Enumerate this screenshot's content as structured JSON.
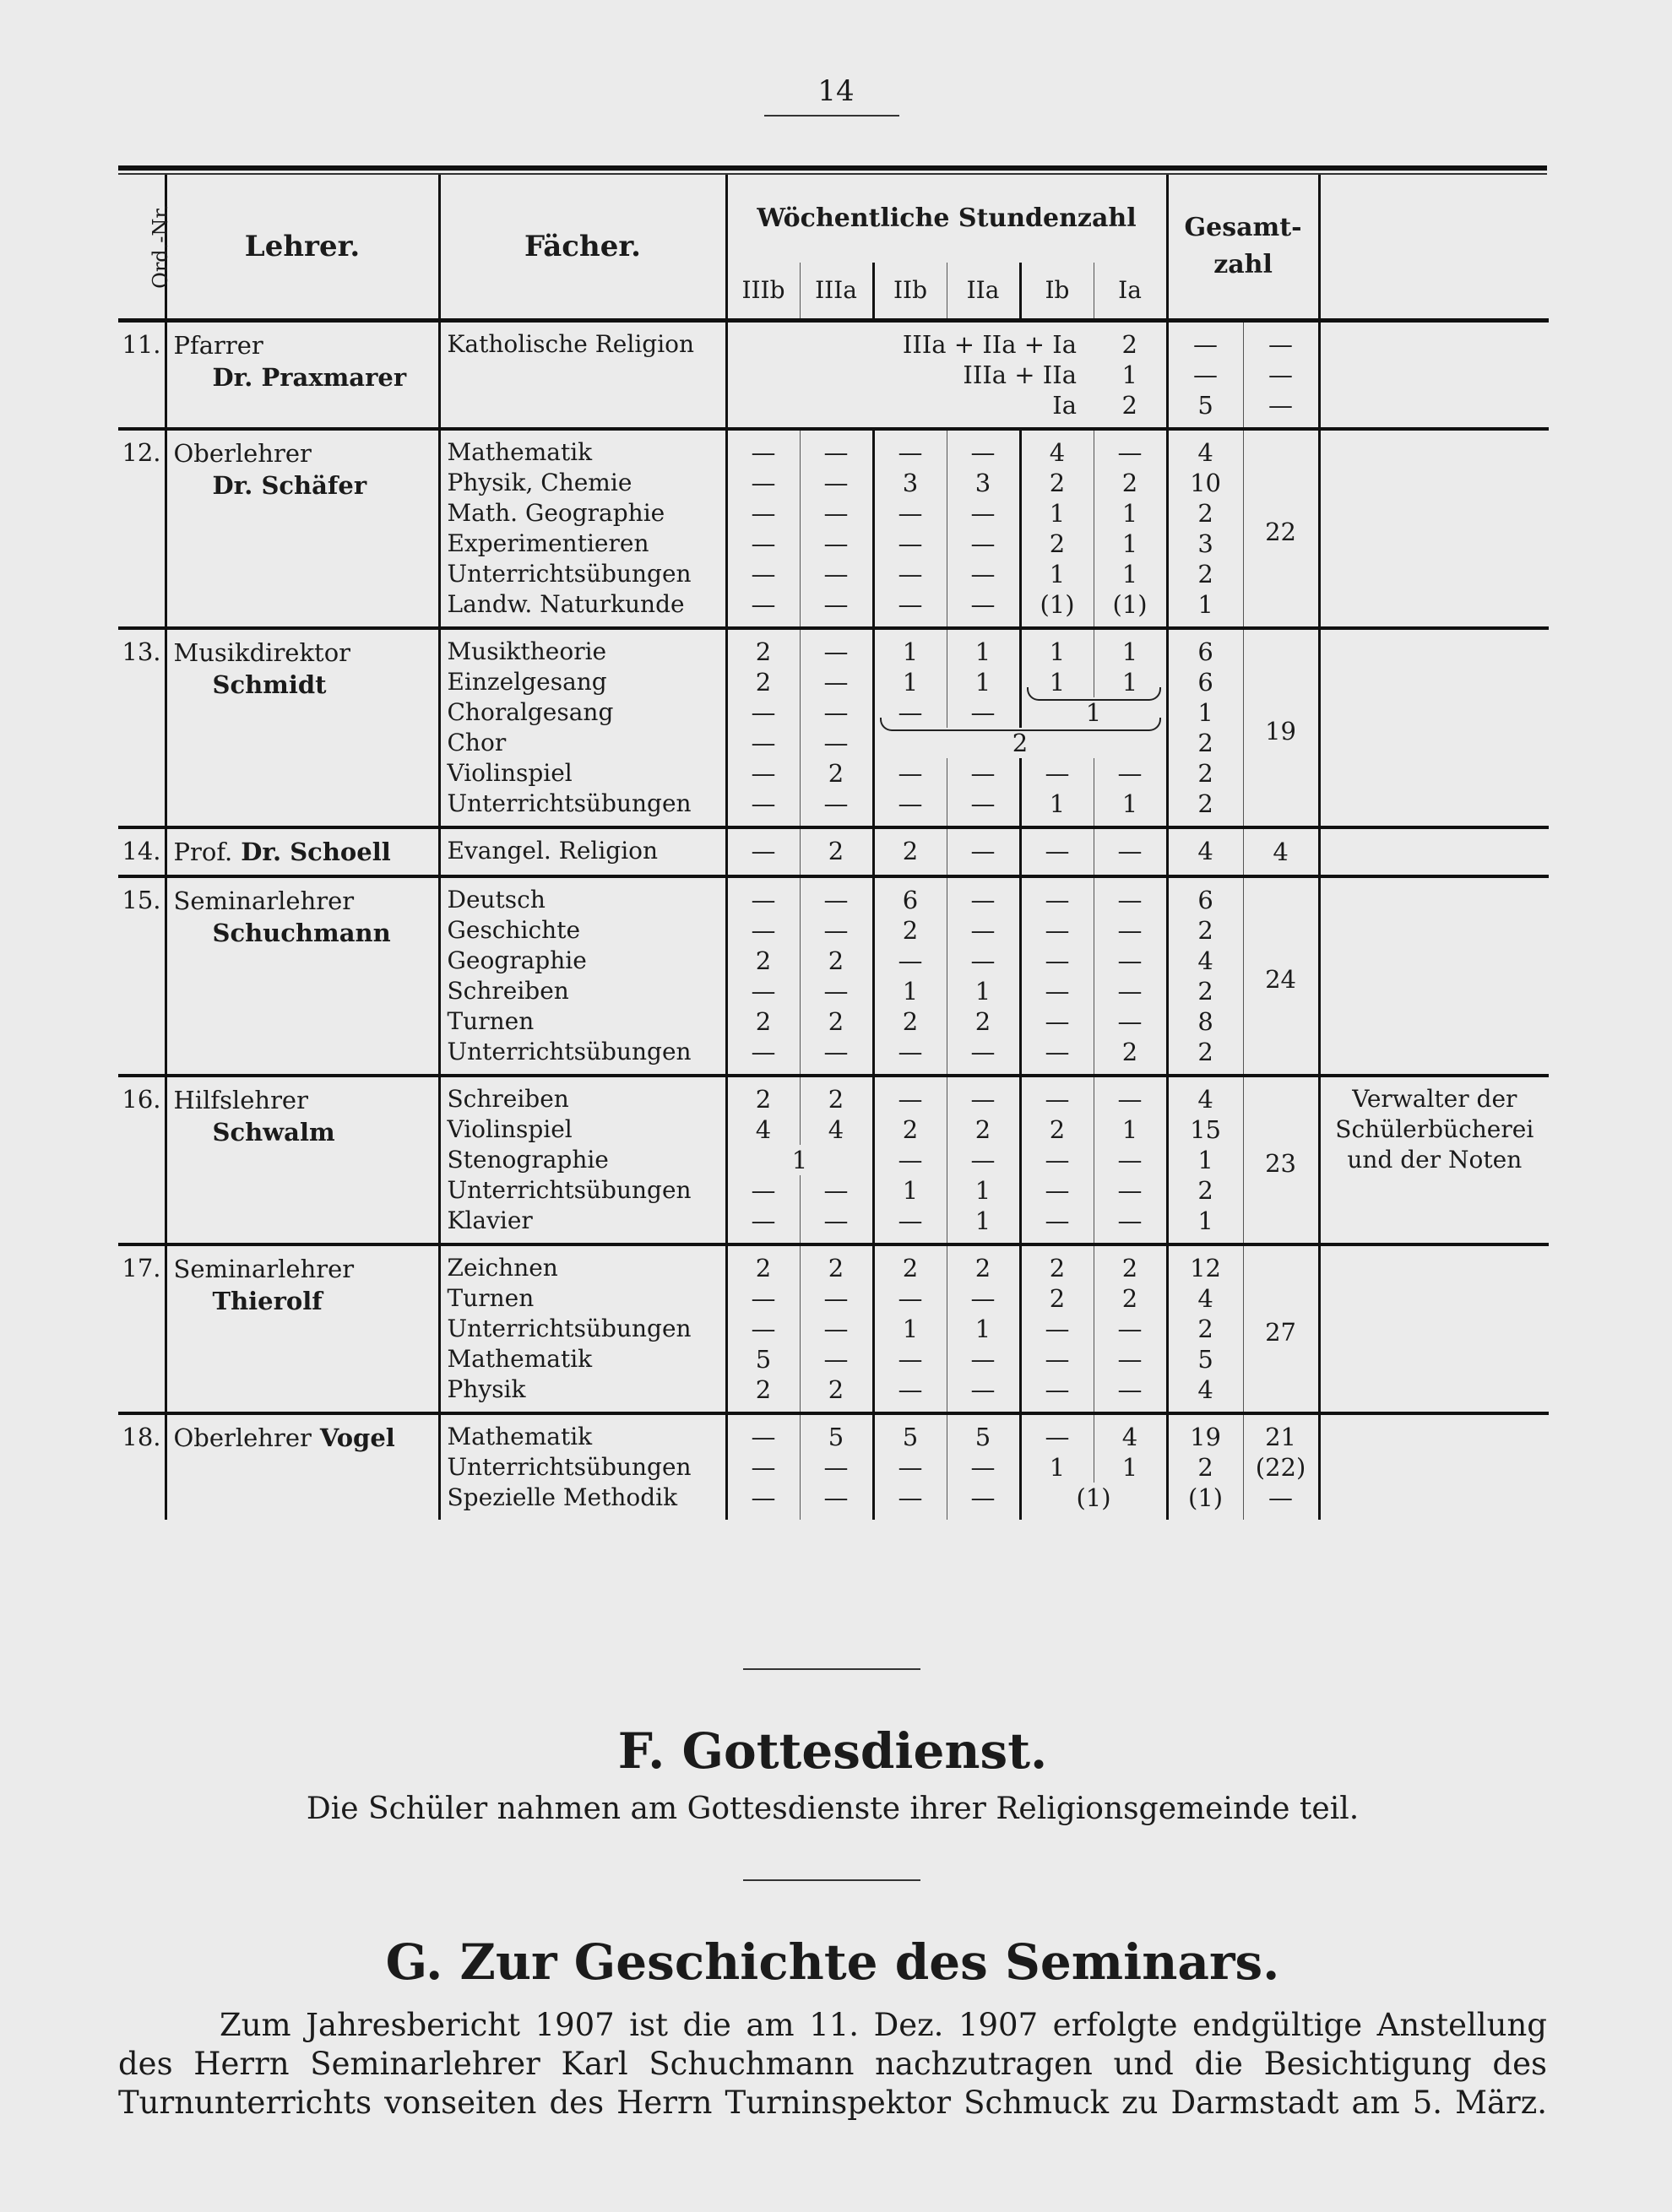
{
  "page_number": "14",
  "table": {
    "headers": {
      "nr": "Ord.-Nr.",
      "teacher": "Lehrer.",
      "subjects": "Fächer.",
      "weekly": "Wöchentliche Stundenzahl",
      "classes": [
        "IIIb",
        "IIIa",
        "IIb",
        "IIa",
        "Ib",
        "Ia"
      ],
      "total": "Gesamt-zahl"
    },
    "blocks": [
      {
        "nr": "11.",
        "title": "Pfarrer",
        "name": "Dr. Praxmarer",
        "rows": [
          {
            "subject": "Katholische Religion",
            "cells": [
              {
                "text": "IIIa + IIa + Ia",
                "span": 5,
                "align": "right"
              },
              "2"
            ],
            "sum": "—",
            "total": "—"
          },
          {
            "subject": "",
            "cells": [
              {
                "text": "IIIa + IIa",
                "span": 5,
                "align": "right"
              },
              "1"
            ],
            "sum": "—",
            "total": "—"
          },
          {
            "subject": "",
            "cells": [
              {
                "text": "Ia",
                "span": 5,
                "align": "right"
              },
              "2"
            ],
            "sum": "5",
            "total": "—"
          }
        ],
        "row_totals": true
      },
      {
        "nr": "12.",
        "title": "Oberlehrer",
        "name": "Dr. Schäfer",
        "total": "22",
        "rows": [
          {
            "subject": "Mathematik",
            "cells": [
              "—",
              "—",
              "—",
              "—",
              "4",
              "—"
            ],
            "sum": "4"
          },
          {
            "subject": "Physik, Chemie",
            "cells": [
              "—",
              "—",
              "3",
              "3",
              "2",
              "2"
            ],
            "sum": "10"
          },
          {
            "subject": "Math. Geographie",
            "cells": [
              "—",
              "—",
              "—",
              "—",
              "1",
              "1"
            ],
            "sum": "2"
          },
          {
            "subject": "Experimentieren",
            "cells": [
              "—",
              "—",
              "—",
              "—",
              "2",
              "1"
            ],
            "sum": "3"
          },
          {
            "subject": "Unterrichtsübungen",
            "cells": [
              "—",
              "—",
              "—",
              "—",
              "1",
              "1"
            ],
            "sum": "2"
          },
          {
            "subject": "Landw. Naturkunde",
            "cells": [
              "—",
              "—",
              "—",
              "—",
              "(1)",
              "(1)"
            ],
            "sum": "1"
          }
        ]
      },
      {
        "nr": "13.",
        "title": "Musikdirektor",
        "name": "Schmidt",
        "total": "19",
        "rows": [
          {
            "subject": "Musiktheorie",
            "cells": [
              "2",
              "—",
              "1",
              "1",
              "1",
              "1"
            ],
            "sum": "6"
          },
          {
            "subject": "Einzelgesang",
            "cells": [
              "2",
              "—",
              "1",
              "1",
              "1",
              "1"
            ],
            "sum": "6"
          },
          {
            "subject": "Choralgesang",
            "cells": [
              "—",
              "—",
              "—",
              "—",
              {
                "text": "1",
                "span": 2,
                "brace": true
              }
            ],
            "sum": "1"
          },
          {
            "subject": "Chor",
            "cells": [
              "—",
              "—",
              {
                "text": "2",
                "span": 4,
                "brace": true
              }
            ],
            "sum": "2"
          },
          {
            "subject": "Violinspiel",
            "cells": [
              "—",
              "2",
              "—",
              "—",
              "—",
              "—"
            ],
            "sum": "2"
          },
          {
            "subject": "Unterrichtsübungen",
            "cells": [
              "—",
              "—",
              "—",
              "—",
              "1",
              "1"
            ],
            "sum": "2"
          }
        ]
      },
      {
        "nr": "14.",
        "title": "Prof.",
        "name": "Dr. Schoell",
        "inline_name": true,
        "total": "4",
        "rows": [
          {
            "subject": "Evangel. Religion",
            "cells": [
              "—",
              "2",
              "2",
              "—",
              "—",
              "—"
            ],
            "sum": "4"
          }
        ]
      },
      {
        "nr": "15.",
        "title": "Seminarlehrer",
        "name": "Schuchmann",
        "total": "24",
        "rows": [
          {
            "subject": "Deutsch",
            "cells": [
              "—",
              "—",
              "6",
              "—",
              "—",
              "—"
            ],
            "sum": "6"
          },
          {
            "subject": "Geschichte",
            "cells": [
              "—",
              "—",
              "2",
              "—",
              "—",
              "—"
            ],
            "sum": "2"
          },
          {
            "subject": "Geographie",
            "cells": [
              "2",
              "2",
              "—",
              "—",
              "—",
              "—"
            ],
            "sum": "4"
          },
          {
            "subject": "Schreiben",
            "cells": [
              "—",
              "—",
              "1",
              "1",
              "—",
              "—"
            ],
            "sum": "2"
          },
          {
            "subject": "Turnen",
            "cells": [
              "2",
              "2",
              "2",
              "2",
              "—",
              "—"
            ],
            "sum": "8"
          },
          {
            "subject": "Unterrichtsübungen",
            "cells": [
              "—",
              "—",
              "—",
              "—",
              "—",
              "2"
            ],
            "sum": "2"
          }
        ]
      },
      {
        "nr": "16.",
        "title": "Hilfslehrer",
        "name": "Schwalm",
        "total": "23",
        "remark": "Verwalter der Schülerbücherei und der Noten",
        "rows": [
          {
            "subject": "Schreiben",
            "cells": [
              "2",
              "2",
              "—",
              "—",
              "—",
              "—"
            ],
            "sum": "4"
          },
          {
            "subject": "Violinspiel",
            "cells": [
              "4",
              "4",
              "2",
              "2",
              "2",
              "1"
            ],
            "sum": "15"
          },
          {
            "subject": "Stenographie",
            "cells": [
              {
                "text": "1",
                "span": 2
              },
              "—",
              "—",
              "—",
              "—"
            ],
            "sum": "1"
          },
          {
            "subject": "Unterrichtsübungen",
            "cells": [
              "—",
              "—",
              "1",
              "1",
              "—",
              "—"
            ],
            "sum": "2"
          },
          {
            "subject": "Klavier",
            "cells": [
              "—",
              "—",
              "—",
              "1",
              "—",
              "—"
            ],
            "sum": "1"
          }
        ]
      },
      {
        "nr": "17.",
        "title": "Seminarlehrer",
        "name": "Thierolf",
        "total": "27",
        "rows": [
          {
            "subject": "Zeichnen",
            "cells": [
              "2",
              "2",
              "2",
              "2",
              "2",
              "2"
            ],
            "sum": "12"
          },
          {
            "subject": "Turnen",
            "cells": [
              "—",
              "—",
              "—",
              "—",
              "2",
              "2"
            ],
            "sum": "4"
          },
          {
            "subject": "Unterrichtsübungen",
            "cells": [
              "—",
              "—",
              "1",
              "1",
              "—",
              "—"
            ],
            "sum": "2"
          },
          {
            "subject": "Mathematik",
            "cells": [
              "5",
              "—",
              "—",
              "—",
              "—",
              "—"
            ],
            "sum": "5"
          },
          {
            "subject": "Physik",
            "cells": [
              "2",
              "2",
              "—",
              "—",
              "—",
              "—"
            ],
            "sum": "4"
          }
        ]
      },
      {
        "nr": "18.",
        "title": "Oberlehrer",
        "name": "Vogel",
        "inline_name": true,
        "rows": [
          {
            "subject": "Mathematik",
            "cells": [
              "—",
              "5",
              "5",
              "5",
              "—",
              "4"
            ],
            "sum": "19",
            "total": "21"
          },
          {
            "subject": "Unterrichtsübungen",
            "cells": [
              "—",
              "—",
              "—",
              "—",
              "1",
              "1"
            ],
            "sum": "2",
            "total": "(22)"
          },
          {
            "subject": "Spezielle Methodik",
            "cells": [
              "—",
              "—",
              "—",
              "—",
              {
                "text": "(1)",
                "span": 2
              }
            ],
            "sum": "(1)",
            "total": "—"
          }
        ],
        "row_totals": true
      }
    ]
  },
  "section_f": {
    "heading": "F. Gottesdienst.",
    "text": "Die Schüler nahmen am Gottesdienste ihrer Religionsgemeinde teil."
  },
  "section_g": {
    "heading": "G. Zur Geschichte des Seminars.",
    "lines": [
      "Zum Jahresbericht 1907 ist die am 11. Dez. 1907 erfolgte endgültige Anstellung",
      "des Herrn Seminarlehrer Karl Schuchmann nachzutragen und die Besichtigung des",
      "Turnunterrichts vonseiten des Herrn Turninspektor Schmuck zu Darmstadt am 5. März."
    ]
  }
}
